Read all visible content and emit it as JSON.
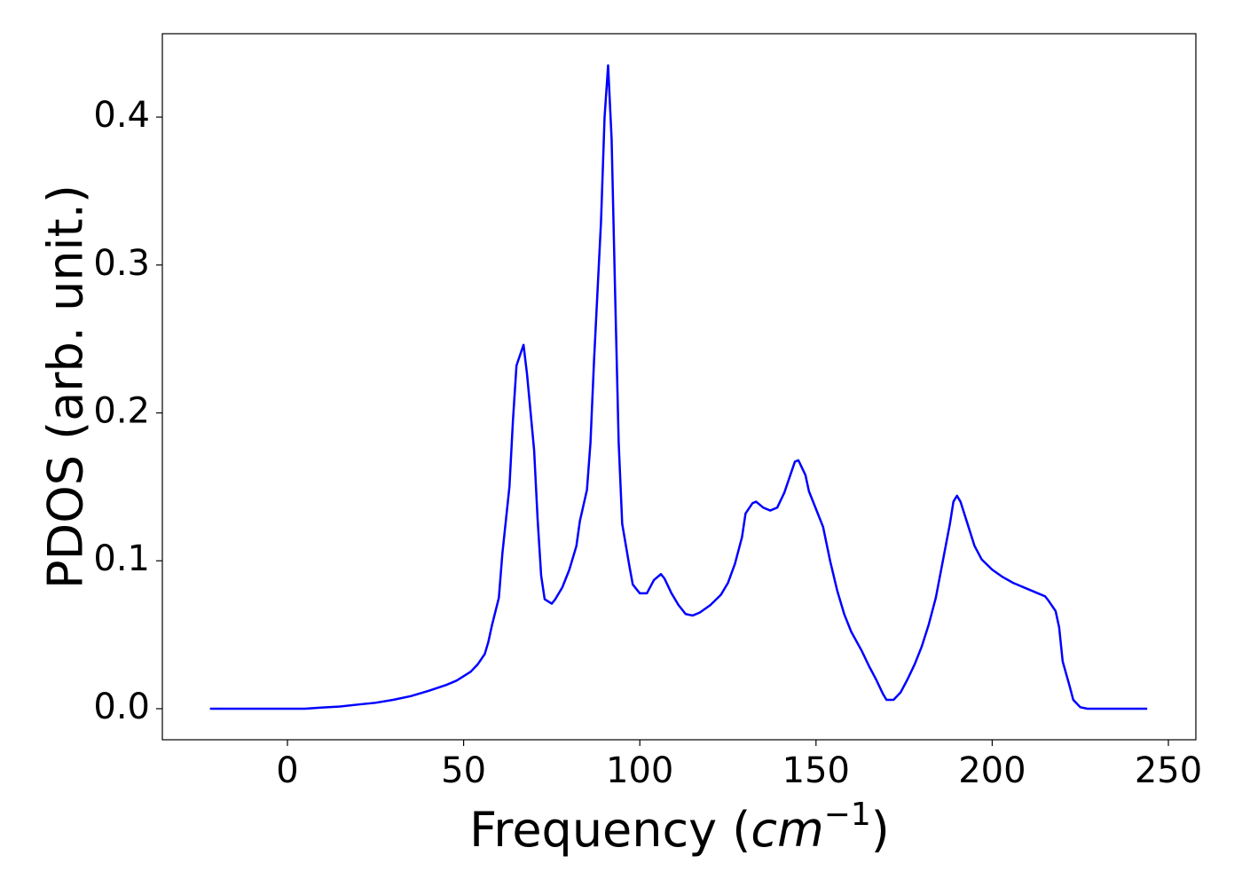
{
  "chart_data": {
    "type": "line",
    "xlabel_parts": [
      "Frequency (",
      "cm",
      "−1",
      ")"
    ],
    "ylabel": "PDOS (arb. unit.)",
    "x": [
      -22,
      -10,
      0,
      5,
      10,
      15,
      20,
      25,
      30,
      35,
      40,
      45,
      48,
      50,
      52,
      54,
      56,
      57,
      58,
      60,
      61,
      63,
      64,
      65,
      67,
      68,
      70,
      71,
      72,
      73,
      75,
      76,
      78,
      80,
      82,
      83,
      85,
      86,
      87,
      89,
      90,
      91,
      92,
      93,
      94,
      95,
      97,
      98,
      100,
      102,
      104,
      106,
      107,
      109,
      111,
      113,
      115,
      117,
      120,
      123,
      125,
      127,
      129,
      130,
      132,
      133,
      135,
      137,
      139,
      141,
      143,
      144,
      145,
      147,
      148,
      150,
      152,
      154,
      156,
      158,
      160,
      163,
      165,
      167,
      169,
      170,
      172,
      174,
      176,
      178,
      180,
      182,
      184,
      186,
      188,
      189,
      190,
      191,
      193,
      195,
      197,
      200,
      203,
      206,
      210,
      213,
      215,
      216,
      218,
      219,
      220,
      222,
      223,
      225,
      227,
      235,
      244
    ],
    "series": [
      {
        "name": "PDOS",
        "color": "#0000ff",
        "values": [
          0,
          0,
          0,
          0,
          0.0008,
          0.0015,
          0.0028,
          0.004,
          0.006,
          0.0085,
          0.012,
          0.016,
          0.019,
          0.022,
          0.025,
          0.03,
          0.037,
          0.045,
          0.056,
          0.075,
          0.105,
          0.15,
          0.195,
          0.232,
          0.246,
          0.226,
          0.175,
          0.128,
          0.09,
          0.074,
          0.071,
          0.074,
          0.082,
          0.094,
          0.11,
          0.127,
          0.148,
          0.18,
          0.235,
          0.33,
          0.4,
          0.435,
          0.385,
          0.28,
          0.18,
          0.125,
          0.097,
          0.084,
          0.078,
          0.078,
          0.087,
          0.091,
          0.088,
          0.078,
          0.07,
          0.064,
          0.063,
          0.065,
          0.07,
          0.077,
          0.085,
          0.098,
          0.116,
          0.132,
          0.139,
          0.14,
          0.136,
          0.134,
          0.136,
          0.146,
          0.16,
          0.167,
          0.168,
          0.158,
          0.147,
          0.135,
          0.123,
          0.1,
          0.08,
          0.064,
          0.052,
          0.039,
          0.029,
          0.02,
          0.01,
          0.006,
          0.006,
          0.011,
          0.02,
          0.03,
          0.042,
          0.057,
          0.075,
          0.1,
          0.125,
          0.14,
          0.144,
          0.14,
          0.125,
          0.11,
          0.101,
          0.094,
          0.089,
          0.085,
          0.081,
          0.078,
          0.076,
          0.073,
          0.066,
          0.055,
          0.032,
          0.015,
          0.006,
          0.001,
          0,
          0,
          0
        ]
      }
    ],
    "xlim": [
      -35.5,
      257.8
    ],
    "ylim": [
      -0.021,
      0.4564
    ],
    "xticks": [
      0,
      50,
      100,
      150,
      200,
      250
    ],
    "yticks": [
      {
        "value": 0,
        "label": "0.0"
      },
      0.1,
      0.2,
      0.3,
      0.4
    ],
    "grid": false
  }
}
